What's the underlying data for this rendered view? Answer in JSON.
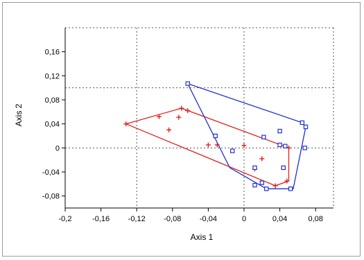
{
  "chart_data": {
    "type": "scatter",
    "xlabel": "Axis 1",
    "ylabel": "Axis 2",
    "xlim": [
      -0.2,
      0.1
    ],
    "ylim": [
      -0.1,
      0.2
    ],
    "x_ticks": [
      -0.2,
      -0.16,
      -0.12,
      -0.08,
      -0.04,
      0,
      0.04,
      0.08
    ],
    "x_tick_labels": [
      "-0,2",
      "-0,16",
      "-0,12",
      "-0,08",
      "-0,04",
      "0",
      "0,04",
      "0,08"
    ],
    "y_ticks": [
      -0.08,
      -0.04,
      0,
      0.04,
      0.08,
      0.12,
      0.16
    ],
    "y_tick_labels": [
      "-0,08",
      "-0,04",
      "0",
      "0,04",
      "0,08",
      "0,12",
      "0,16"
    ],
    "grid": "dotted lines at x = -0.12, x = 0, y = 0 and y = 0.1",
    "ref_lines": {
      "x": [
        -0.12,
        0
      ],
      "y": [
        0,
        0.1
      ]
    },
    "legend": "none",
    "series": [
      {
        "marker": "plus",
        "color": "#e02020",
        "points": [
          [
            -0.132,
            0.04
          ],
          [
            -0.095,
            0.052
          ],
          [
            -0.084,
            0.03
          ],
          [
            -0.073,
            0.051
          ],
          [
            -0.07,
            0.066
          ],
          [
            -0.063,
            0.062
          ],
          [
            -0.04,
            0.005
          ],
          [
            -0.03,
            0.005
          ],
          [
            0.0,
            0.004
          ],
          [
            0.012,
            -0.035
          ],
          [
            0.02,
            -0.018
          ],
          [
            0.035,
            -0.063
          ],
          [
            0.048,
            -0.055
          ],
          [
            0.05,
            0.0
          ]
        ],
        "hull": [
          [
            -0.132,
            0.04
          ],
          [
            -0.07,
            0.066
          ],
          [
            0.05,
            0.0
          ],
          [
            0.05,
            -0.055
          ],
          [
            0.035,
            -0.063
          ],
          [
            -0.132,
            0.04
          ]
        ]
      },
      {
        "marker": "square",
        "color": "#2030d0",
        "points": [
          [
            -0.063,
            0.107
          ],
          [
            -0.032,
            0.02
          ],
          [
            -0.013,
            -0.005
          ],
          [
            0.012,
            -0.033
          ],
          [
            0.012,
            -0.062
          ],
          [
            0.02,
            -0.058
          ],
          [
            0.022,
            0.018
          ],
          [
            0.04,
            0.028
          ],
          [
            0.04,
            0.005
          ],
          [
            0.046,
            0.003
          ],
          [
            0.044,
            -0.033
          ],
          [
            0.052,
            -0.068
          ],
          [
            0.065,
            0.042
          ],
          [
            0.069,
            0.035
          ],
          [
            0.068,
            0.0
          ],
          [
            0.025,
            -0.068
          ]
        ],
        "hull": [
          [
            -0.063,
            0.107
          ],
          [
            0.065,
            0.042
          ],
          [
            0.069,
            0.035
          ],
          [
            0.055,
            -0.068
          ],
          [
            0.025,
            -0.068
          ],
          [
            -0.016,
            -0.033
          ],
          [
            -0.063,
            0.107
          ]
        ]
      }
    ]
  }
}
